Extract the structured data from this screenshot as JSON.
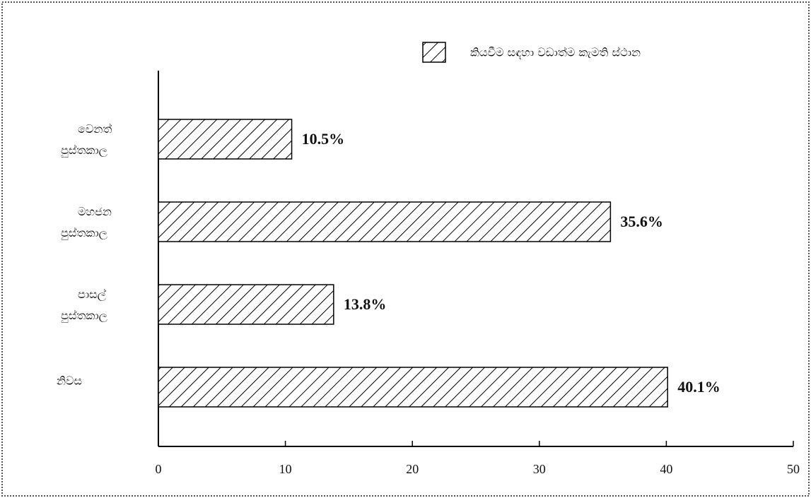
{
  "chart_data": {
    "type": "bar",
    "orientation": "horizontal",
    "legend": "කියවීම සඳහා වඩාත්ම කැමති ස්ථාන",
    "categories": [
      "වෙනත් පුස්තකාල",
      "මහජන පුස්තකාල",
      "පාසල් පුස්තකාල",
      "නිවස"
    ],
    "values": [
      10.5,
      35.6,
      13.8,
      40.1
    ],
    "value_labels": [
      "10.5%",
      "35.6%",
      "13.8%",
      "40.1%"
    ],
    "color": "#000000",
    "xlim": [
      0,
      50
    ],
    "xticks": [
      0,
      10,
      20,
      30,
      40,
      50
    ]
  }
}
